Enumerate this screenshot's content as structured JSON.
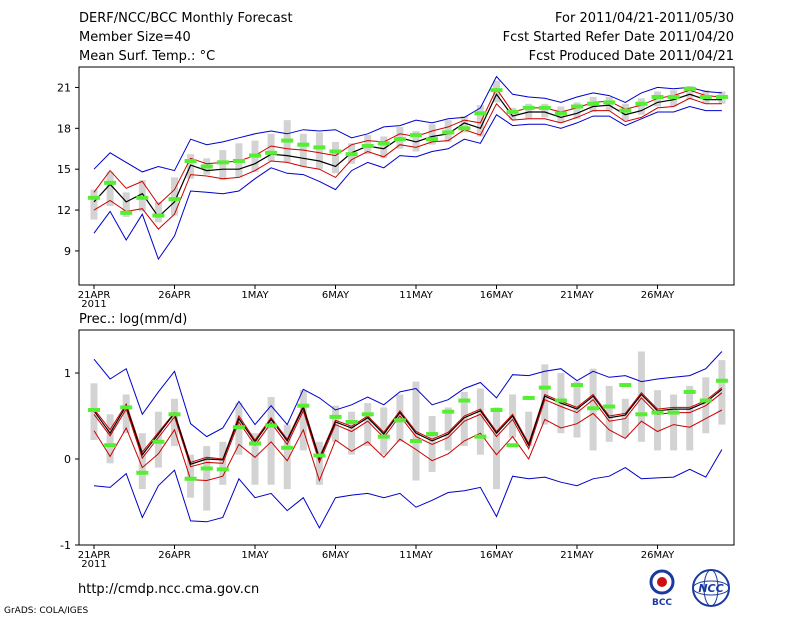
{
  "header": {
    "title": "DERF/NCC/BCC Monthly Forecast",
    "member_size": "Member Size=40",
    "variable": "Mean Surf. Temp.: °C",
    "period": "For 2011/04/21-2011/05/30",
    "start_date": "Fcst Started Refer Date 2011/04/20",
    "produced_date": "Fcst Produced Date 2011/04/21"
  },
  "footer": {
    "url": "http://cmdp.ncc.cma.gov.cn",
    "credit": "GrADS: COLA/IGES",
    "logo_bcc": "BCC",
    "logo_ncc": "NCC"
  },
  "colors": {
    "envelope": "#0000cc",
    "spread": "#cc0000",
    "mean": "#000000",
    "box": "#d3d3d3",
    "climate": "#55ee33"
  },
  "chart_data": [
    {
      "type": "line",
      "title": "Mean Surf. Temp.: °C",
      "x_tick_labels": [
        "21APR",
        "26APR",
        "1MAY",
        "6MAY",
        "11MAY",
        "16MAY",
        "21MAY",
        "26MAY"
      ],
      "x_tick_days": [
        0,
        5,
        10,
        15,
        20,
        25,
        30,
        35
      ],
      "x_year_label": "2011",
      "ylim": [
        6.5,
        22.5
      ],
      "yticks": [
        9,
        12,
        15,
        18,
        21
      ],
      "series": [
        {
          "name": "max",
          "values": [
            15.0,
            16.2,
            15.5,
            14.8,
            15.2,
            14.9,
            17.2,
            16.8,
            17.0,
            17.3,
            17.6,
            17.8,
            17.6,
            17.9,
            17.8,
            17.9,
            17.3,
            17.6,
            18.1,
            18.2,
            18.6,
            18.4,
            18.7,
            18.8,
            19.5,
            21.8,
            20.5,
            20.3,
            20.2,
            19.9,
            20.3,
            20.6,
            20.4,
            19.9,
            20.6,
            21.0,
            20.9,
            21.0,
            20.7,
            20.6
          ]
        },
        {
          "name": "upper",
          "values": [
            13.3,
            14.9,
            13.6,
            14.1,
            12.4,
            13.5,
            15.8,
            15.4,
            15.5,
            15.6,
            16.0,
            16.7,
            16.5,
            16.4,
            16.2,
            16.0,
            16.8,
            17.1,
            17.0,
            17.6,
            17.4,
            17.8,
            18.1,
            18.6,
            18.4,
            20.9,
            19.2,
            19.5,
            19.5,
            19.2,
            19.5,
            19.9,
            20.0,
            19.4,
            19.7,
            20.2,
            20.4,
            20.8,
            20.4,
            20.3
          ]
        },
        {
          "name": "mean",
          "values": [
            12.6,
            13.9,
            12.6,
            13.2,
            11.5,
            12.6,
            15.3,
            14.9,
            15.0,
            15.0,
            15.4,
            16.1,
            16.0,
            15.8,
            15.6,
            15.2,
            16.2,
            16.7,
            16.5,
            17.3,
            17.0,
            17.4,
            17.6,
            18.4,
            18.0,
            20.5,
            18.9,
            19.2,
            19.2,
            18.8,
            19.1,
            19.6,
            19.7,
            19.0,
            19.3,
            19.9,
            20.1,
            20.5,
            20.1,
            20.1
          ]
        },
        {
          "name": "lower",
          "values": [
            12.0,
            12.7,
            11.9,
            12.1,
            10.6,
            11.7,
            14.6,
            14.5,
            14.3,
            14.4,
            14.9,
            15.6,
            15.5,
            15.2,
            15.0,
            14.4,
            15.7,
            16.3,
            15.9,
            16.8,
            16.6,
            17.0,
            17.1,
            17.9,
            17.5,
            19.8,
            18.6,
            18.7,
            18.7,
            18.4,
            18.8,
            19.3,
            19.3,
            18.5,
            18.8,
            19.5,
            19.6,
            20.2,
            19.8,
            19.8
          ]
        },
        {
          "name": "min",
          "values": [
            10.3,
            11.9,
            9.8,
            11.7,
            8.4,
            10.1,
            13.4,
            13.3,
            13.2,
            13.4,
            14.3,
            15.1,
            14.7,
            14.6,
            14.1,
            13.5,
            14.9,
            15.5,
            15.1,
            16.0,
            15.9,
            16.3,
            16.5,
            17.2,
            16.9,
            19.0,
            18.2,
            18.3,
            18.3,
            18.0,
            18.4,
            18.9,
            18.9,
            18.2,
            18.7,
            19.2,
            19.2,
            19.6,
            19.3,
            19.3
          ]
        },
        {
          "name": "climate",
          "values": [
            12.9,
            14.0,
            11.8,
            12.9,
            11.6,
            12.8,
            15.6,
            15.2,
            15.5,
            15.6,
            16.0,
            16.2,
            17.1,
            16.8,
            16.6,
            16.3,
            16.1,
            16.7,
            16.9,
            17.2,
            17.5,
            17.2,
            17.7,
            18.0,
            19.1,
            20.8,
            19.2,
            19.5,
            19.5,
            19.1,
            19.6,
            19.8,
            19.9,
            19.3,
            19.8,
            20.3,
            20.3,
            20.9,
            20.3,
            20.3
          ]
        },
        {
          "name": "box_low",
          "values": [
            11.3,
            12.3,
            11.5,
            11.9,
            11.1,
            11.6,
            14.3,
            14.6,
            14.2,
            14.4,
            14.8,
            15.6,
            15.5,
            15.2,
            15.0,
            14.7,
            15.4,
            16.1,
            15.8,
            16.5,
            16.3,
            16.8,
            17.0,
            17.7,
            17.4,
            19.9,
            18.6,
            18.7,
            18.8,
            18.4,
            18.7,
            19.2,
            19.3,
            18.6,
            19.0,
            19.6,
            19.6,
            20.1,
            19.8,
            19.8
          ]
        },
        {
          "name": "box_high",
          "values": [
            13.5,
            14.8,
            13.3,
            14.2,
            12.6,
            14.4,
            16.1,
            15.8,
            16.4,
            16.9,
            17.1,
            17.6,
            18.6,
            17.6,
            17.7,
            17.0,
            16.9,
            17.5,
            17.4,
            18.1,
            17.8,
            18.3,
            18.6,
            18.9,
            19.7,
            21.5,
            19.5,
            19.8,
            19.8,
            19.6,
            19.9,
            20.3,
            20.3,
            19.8,
            20.2,
            20.7,
            20.8,
            21.1,
            20.8,
            20.7
          ]
        }
      ]
    },
    {
      "type": "line",
      "title": "Prec.: log(mm/d)",
      "x_tick_labels": [
        "21APR",
        "26APR",
        "1MAY",
        "6MAY",
        "11MAY",
        "16MAY",
        "21MAY",
        "26MAY"
      ],
      "x_tick_days": [
        0,
        5,
        10,
        15,
        20,
        25,
        30,
        35
      ],
      "x_year_label": "2011",
      "ylim": [
        -1,
        1.5
      ],
      "yticks": [
        -1,
        0,
        1
      ],
      "series": [
        {
          "name": "max",
          "values": [
            1.16,
            0.93,
            1.05,
            0.52,
            0.78,
            1.02,
            0.41,
            0.26,
            0.36,
            0.67,
            0.4,
            0.62,
            0.4,
            0.81,
            0.71,
            0.57,
            0.63,
            0.72,
            0.63,
            0.78,
            0.82,
            0.63,
            0.69,
            0.82,
            0.89,
            0.71,
            0.98,
            0.97,
            1.02,
            1.05,
            0.91,
            1.02,
            0.95,
            0.97,
            0.9,
            0.93,
            0.95,
            0.97,
            1.05,
            1.25
          ]
        },
        {
          "name": "upper",
          "values": [
            0.58,
            0.34,
            0.64,
            0.08,
            0.31,
            0.54,
            -0.04,
            0.02,
            0.0,
            0.5,
            0.22,
            0.48,
            0.23,
            0.62,
            0.02,
            0.45,
            0.38,
            0.5,
            0.31,
            0.56,
            0.32,
            0.23,
            0.31,
            0.5,
            0.58,
            0.32,
            0.52,
            0.18,
            0.75,
            0.67,
            0.6,
            0.75,
            0.5,
            0.53,
            0.77,
            0.58,
            0.6,
            0.6,
            0.68,
            0.83
          ]
        },
        {
          "name": "mean",
          "values": [
            0.56,
            0.3,
            0.62,
            0.05,
            0.29,
            0.53,
            -0.06,
            0.0,
            -0.01,
            0.47,
            0.2,
            0.46,
            0.21,
            0.6,
            0.0,
            0.43,
            0.36,
            0.48,
            0.29,
            0.54,
            0.3,
            0.21,
            0.29,
            0.48,
            0.56,
            0.3,
            0.5,
            0.16,
            0.73,
            0.65,
            0.58,
            0.73,
            0.48,
            0.51,
            0.75,
            0.56,
            0.58,
            0.58,
            0.66,
            0.81
          ]
        },
        {
          "name": "lower",
          "values": [
            0.52,
            0.27,
            0.58,
            0.01,
            0.25,
            0.49,
            -0.09,
            -0.04,
            -0.05,
            0.43,
            0.16,
            0.42,
            0.17,
            0.56,
            -0.04,
            0.4,
            0.32,
            0.44,
            0.25,
            0.5,
            0.26,
            0.17,
            0.25,
            0.44,
            0.52,
            0.26,
            0.46,
            0.12,
            0.69,
            0.61,
            0.54,
            0.69,
            0.44,
            0.47,
            0.71,
            0.52,
            0.54,
            0.54,
            0.62,
            0.77
          ]
        },
        {
          "name": "lowest",
          "values": [
            0.33,
            0.03,
            0.36,
            -0.1,
            0.06,
            0.34,
            -0.24,
            -0.25,
            -0.2,
            0.17,
            0.02,
            0.2,
            -0.02,
            0.34,
            -0.25,
            0.22,
            0.09,
            0.2,
            0.02,
            0.23,
            0.11,
            -0.02,
            0.06,
            0.21,
            0.3,
            0.05,
            0.26,
            0.0,
            0.46,
            0.36,
            0.41,
            0.53,
            0.34,
            0.24,
            0.44,
            0.32,
            0.4,
            0.37,
            0.47,
            0.57
          ]
        },
        {
          "name": "min",
          "values": [
            -0.31,
            -0.33,
            -0.17,
            -0.68,
            -0.31,
            -0.13,
            -0.72,
            -0.73,
            -0.68,
            -0.23,
            -0.45,
            -0.4,
            -0.6,
            -0.45,
            -0.8,
            -0.45,
            -0.42,
            -0.4,
            -0.45,
            -0.4,
            -0.56,
            -0.48,
            -0.39,
            -0.37,
            -0.33,
            -0.67,
            -0.2,
            -0.23,
            -0.21,
            -0.27,
            -0.31,
            -0.23,
            -0.2,
            -0.1,
            -0.23,
            -0.22,
            -0.21,
            -0.12,
            -0.21,
            0.11
          ]
        },
        {
          "name": "climate",
          "values": [
            0.57,
            0.16,
            0.6,
            -0.16,
            0.2,
            0.52,
            -0.23,
            -0.11,
            -0.12,
            0.37,
            0.18,
            0.39,
            0.13,
            0.62,
            0.04,
            0.49,
            0.43,
            0.52,
            0.26,
            0.45,
            0.21,
            0.29,
            0.55,
            0.68,
            0.26,
            0.57,
            0.16,
            0.71,
            0.83,
            0.68,
            0.86,
            0.59,
            0.61,
            0.86,
            0.52,
            0.54,
            0.54,
            0.78,
            0.68,
            0.91
          ]
        },
        {
          "name": "box_low",
          "values": [
            0.22,
            -0.05,
            0.3,
            -0.35,
            -0.1,
            0.15,
            -0.45,
            -0.6,
            -0.3,
            0.05,
            -0.3,
            -0.3,
            -0.35,
            0.1,
            -0.3,
            0.2,
            0.05,
            0.15,
            0.05,
            0.2,
            -0.25,
            -0.15,
            0.1,
            0.15,
            0.05,
            -0.35,
            0.25,
            0.15,
            0.4,
            0.3,
            0.25,
            0.1,
            0.2,
            0.25,
            0.2,
            0.1,
            0.1,
            0.1,
            0.3,
            0.4
          ]
        },
        {
          "name": "box_high",
          "values": [
            0.88,
            0.52,
            0.75,
            0.3,
            0.55,
            0.7,
            0.05,
            0.15,
            0.2,
            0.65,
            0.3,
            0.72,
            0.4,
            0.8,
            0.2,
            0.62,
            0.55,
            0.65,
            0.6,
            0.75,
            0.9,
            0.5,
            0.6,
            0.78,
            0.82,
            0.6,
            0.75,
            0.55,
            1.1,
            1.0,
            0.9,
            1.05,
            0.85,
            0.7,
            1.25,
            0.8,
            0.75,
            0.85,
            0.95,
            1.15
          ]
        }
      ]
    }
  ]
}
